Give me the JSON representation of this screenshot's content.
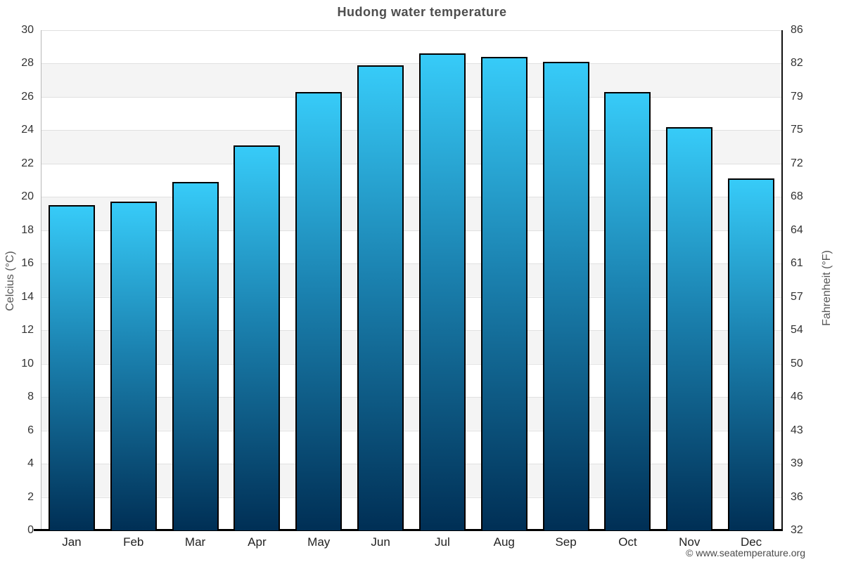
{
  "title": "Hudong water temperature",
  "watermark": "© www.seatemperature.org",
  "chart_data": {
    "type": "bar",
    "title": "Hudong water temperature",
    "categories": [
      "Jan",
      "Feb",
      "Mar",
      "Apr",
      "May",
      "Jun",
      "Jul",
      "Aug",
      "Sep",
      "Oct",
      "Nov",
      "Dec"
    ],
    "values": [
      19.5,
      19.7,
      20.9,
      23.1,
      26.3,
      27.9,
      28.6,
      28.4,
      28.1,
      26.3,
      24.2,
      21.1
    ],
    "series_name": "Water temperature (°C)",
    "xlabel": "",
    "ylabel_left": "Celcius (°C)",
    "ylabel_right": "Fahrenheit (°F)",
    "ylim": [
      0,
      30
    ],
    "ytick_step": 2,
    "yticks_left": [
      0,
      2,
      4,
      6,
      8,
      10,
      12,
      14,
      16,
      18,
      20,
      22,
      24,
      26,
      28,
      30
    ],
    "yticks_right": [
      32,
      36,
      39,
      43,
      46,
      50,
      54,
      57,
      61,
      64,
      68,
      72,
      75,
      79,
      82,
      86
    ],
    "grid": "horizontal alternating bands, gridlines every 2°C",
    "legend": "none",
    "colors": {
      "bar_top": "#37cbf8",
      "bar_mid": "#1b82b0",
      "bar_bottom": "#002f55",
      "bar_border": "#000000",
      "band_gray": "#f4f4f4",
      "gridline": "#e0e0e0",
      "title_text": "#4d4d4d",
      "tick_text": "#333333",
      "axis_title_text": "#555555"
    }
  }
}
